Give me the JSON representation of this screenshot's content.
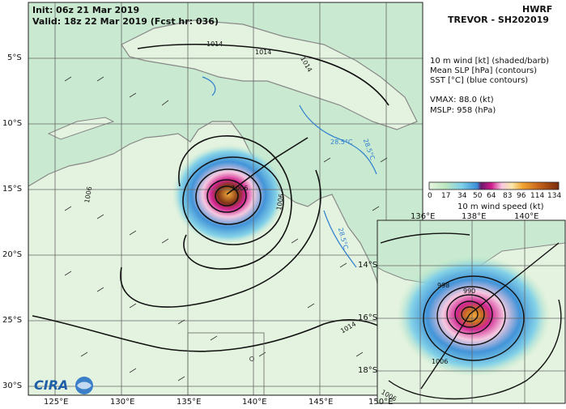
{
  "header": {
    "init_text": "Init:   06z 21 Mar 2019",
    "valid_text": "Valid: 18z 22 Mar 2019 (Fcst hr: 036)",
    "model": "HWRF",
    "storm": "TREVOR - SH202019"
  },
  "legend": {
    "lines": [
      "10 m wind [kt] (shaded/barb)",
      "Mean SLP [hPa] (contours)",
      "SST [°C] (blue contours)"
    ],
    "vmax_text": "VMAX:  88.0 (kt)",
    "mslp_text": "MSLP:  958 (hPa)"
  },
  "colorbar": {
    "ticks": [
      "0",
      "17",
      "34",
      "50",
      "64",
      "83",
      "96",
      "114",
      "134"
    ],
    "label": "10 m wind speed (kt)",
    "colors": [
      "#e6f5e0",
      "#bfe8c0",
      "#7fd0e8",
      "#3a8fd8",
      "#d01a8c",
      "#f6c7e0",
      "#f3a532",
      "#c4621a",
      "#7a2b0a"
    ]
  },
  "main_map": {
    "lat_labels": [
      "5°S",
      "10°S",
      "15°S",
      "20°S",
      "25°S",
      "30°S"
    ],
    "lon_labels": [
      "125°E",
      "130°E",
      "135°E",
      "140°E",
      "145°E",
      "150°E"
    ],
    "contour_labels": [
      "1014",
      "1006",
      "1006",
      "1014",
      "1014",
      "1006",
      "1014"
    ],
    "sst_labels": [
      "28.5°C",
      "28.5°C",
      "28.5°C"
    ]
  },
  "inset_map": {
    "lat_labels": [
      "14°S",
      "16°S",
      "18°S"
    ],
    "lon_labels": [
      "136°E",
      "138°E",
      "140°E"
    ],
    "contour_labels": [
      "998",
      "990",
      "1006",
      "1006"
    ]
  },
  "logo": {
    "text": "CIRA"
  },
  "colors": {
    "land": "#e4f3df",
    "ocean": "#c9ead0",
    "storm_core": "#d01a8c",
    "sst_contour": "#2f7fd0"
  }
}
